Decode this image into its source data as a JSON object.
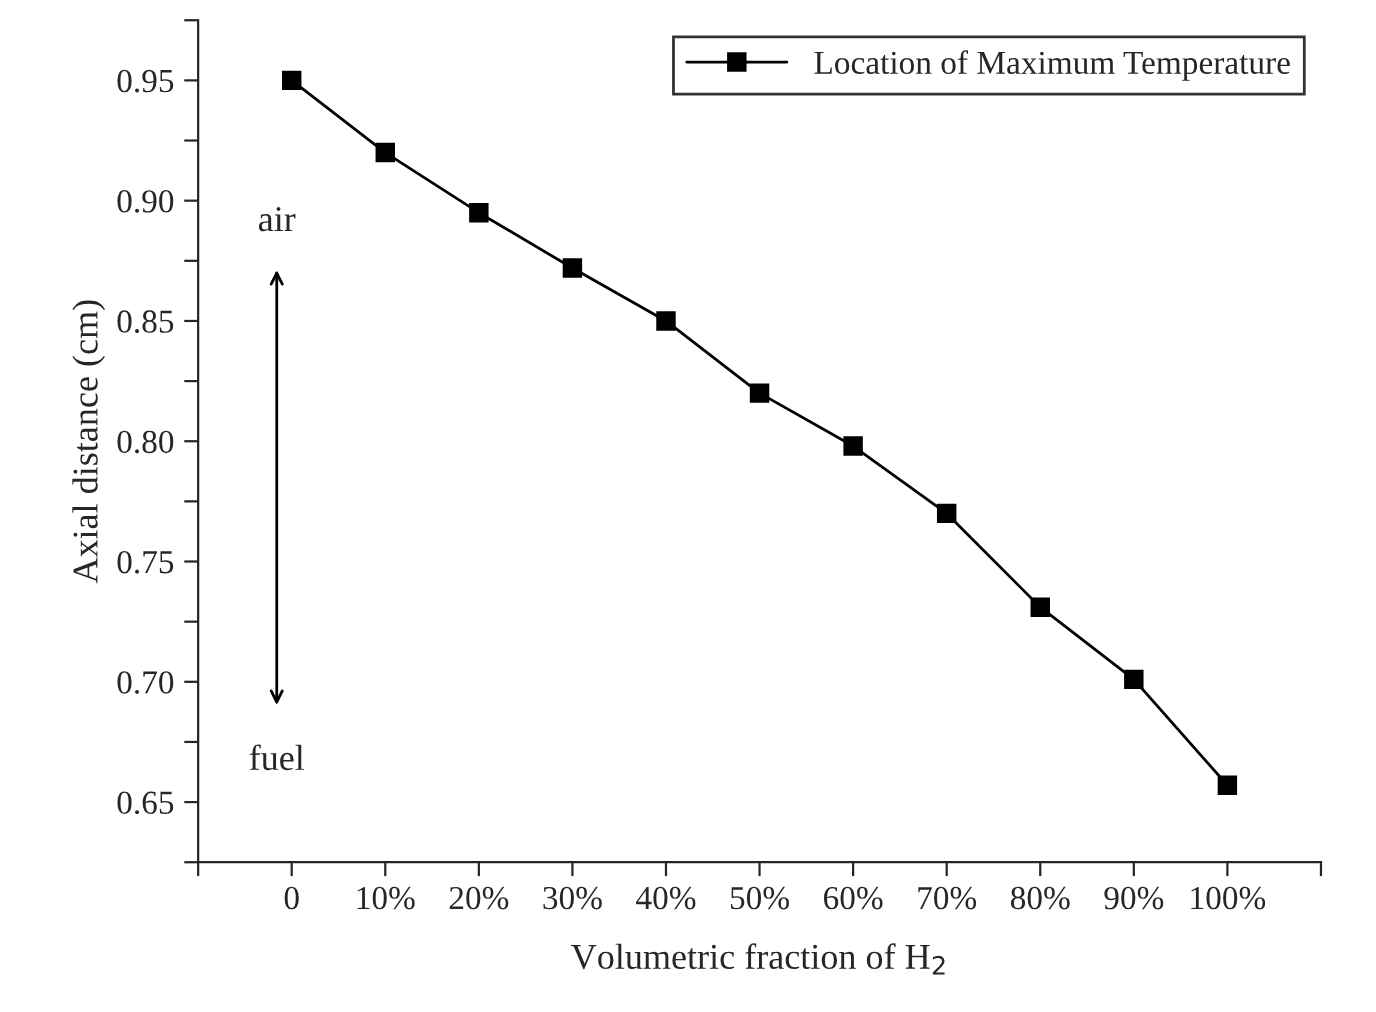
{
  "chart_data": {
    "type": "line",
    "xlabel": "Volumetric fraction of H$_{2}$",
    "ylabel": "Axial distance (cm)",
    "x": [
      0,
      10,
      20,
      30,
      40,
      50,
      60,
      70,
      80,
      90,
      100
    ],
    "series": [
      {
        "name": "Location of Maximum Temperature",
        "color": "#000000",
        "values": [
          0.95,
          0.92,
          0.895,
          0.872,
          0.85,
          0.82,
          0.798,
          0.77,
          0.731,
          0.701,
          0.657
        ]
      }
    ],
    "xlim": [
      -10,
      110
    ],
    "xticks": [
      {
        "value": -10,
        "label": null
      },
      {
        "value": 0,
        "label": "0"
      },
      {
        "value": 10,
        "label": "10%"
      },
      {
        "value": 20,
        "label": "20%"
      },
      {
        "value": 30,
        "label": "30%"
      },
      {
        "value": 40,
        "label": "40%"
      },
      {
        "value": 50,
        "label": "50%"
      },
      {
        "value": 60,
        "label": "60%"
      },
      {
        "value": 70,
        "label": "70%"
      },
      {
        "value": 80,
        "label": "80%"
      },
      {
        "value": 90,
        "label": "90%"
      },
      {
        "value": 100,
        "label": "100%"
      },
      {
        "value": 110,
        "label": null
      }
    ],
    "ylim": [
      0.625,
      0.975
    ],
    "yticks": [
      {
        "value": 0.625,
        "label": null
      },
      {
        "value": 0.65,
        "label": "0.65"
      },
      {
        "value": 0.675,
        "label": null
      },
      {
        "value": 0.7,
        "label": "0.70"
      },
      {
        "value": 0.725,
        "label": null
      },
      {
        "value": 0.75,
        "label": "0.75"
      },
      {
        "value": 0.775,
        "label": null
      },
      {
        "value": 0.8,
        "label": "0.80"
      },
      {
        "value": 0.825,
        "label": null
      },
      {
        "value": 0.85,
        "label": "0.85"
      },
      {
        "value": 0.875,
        "label": null
      },
      {
        "value": 0.9,
        "label": "0.90"
      },
      {
        "value": 0.925,
        "label": null
      },
      {
        "value": 0.95,
        "label": "0.95"
      },
      {
        "value": 0.975,
        "label": null
      }
    ],
    "annotations": [
      "air",
      "fuel"
    ],
    "legend": "top right",
    "marker": "square",
    "line_style": "solid"
  }
}
